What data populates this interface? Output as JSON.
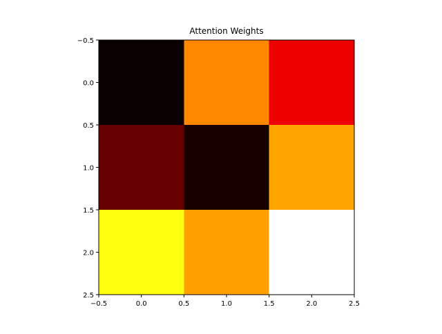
{
  "chart_data": {
    "type": "heatmap",
    "title": "Attention Weights",
    "xlabel": "",
    "ylabel": "",
    "colormap": "hot",
    "grid": false,
    "xlim": [
      -0.5,
      2.5
    ],
    "ylim": [
      2.5,
      -0.5
    ],
    "x_ticks": [
      "−0.5",
      "0.0",
      "0.5",
      "1.0",
      "1.5",
      "2.0",
      "2.5"
    ],
    "y_ticks": [
      "−0.5",
      "0.0",
      "0.5",
      "1.0",
      "1.5",
      "2.0",
      "2.5"
    ],
    "cells": [
      {
        "row": 0,
        "col": 0,
        "color": "#0b0000"
      },
      {
        "row": 0,
        "col": 1,
        "color": "#ff8800"
      },
      {
        "row": 0,
        "col": 2,
        "color": "#ee0000"
      },
      {
        "row": 1,
        "col": 0,
        "color": "#660000"
      },
      {
        "row": 1,
        "col": 1,
        "color": "#180000"
      },
      {
        "row": 1,
        "col": 2,
        "color": "#ffa500"
      },
      {
        "row": 2,
        "col": 0,
        "color": "#ffff10"
      },
      {
        "row": 2,
        "col": 1,
        "color": "#ffa000"
      },
      {
        "row": 2,
        "col": 2,
        "color": "#ffffff"
      }
    ]
  }
}
